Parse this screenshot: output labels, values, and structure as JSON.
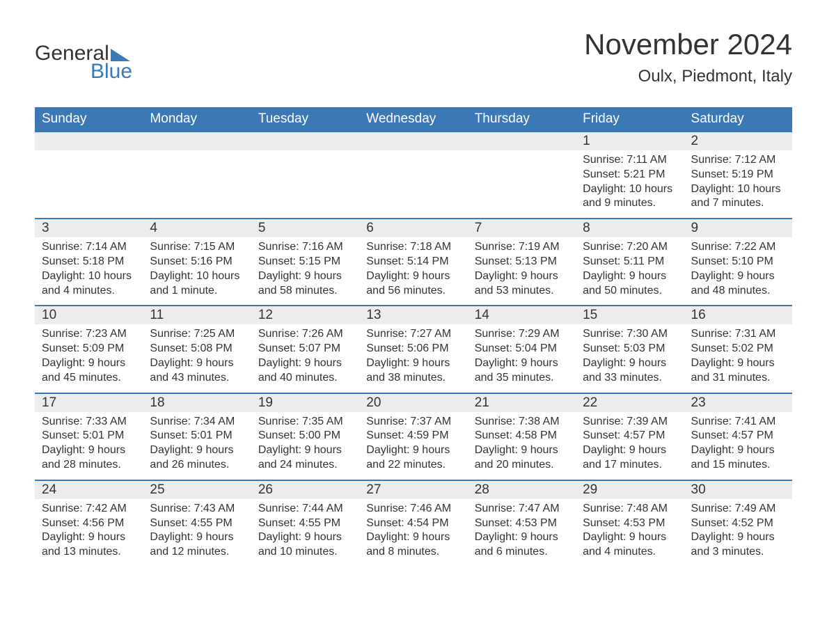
{
  "logo": {
    "word1": "General",
    "word2": "Blue"
  },
  "title": "November 2024",
  "location": "Oulx, Piedmont, Italy",
  "colors": {
    "header_bg": "#3b78b5",
    "header_text": "#ffffff",
    "band_bg": "#ececec",
    "week_border": "#3b78b5",
    "text": "#333333",
    "page_bg": "#ffffff"
  },
  "typography": {
    "title_fontsize": 42,
    "location_fontsize": 24,
    "weekday_fontsize": 19,
    "daynum_fontsize": 19,
    "body_fontsize": 16,
    "logo_fontsize": 30
  },
  "layout": {
    "columns": 7,
    "rows": 5,
    "cell_min_height": 120
  },
  "weekdays": [
    "Sunday",
    "Monday",
    "Tuesday",
    "Wednesday",
    "Thursday",
    "Friday",
    "Saturday"
  ],
  "weeks": [
    [
      {
        "empty": true
      },
      {
        "empty": true
      },
      {
        "empty": true
      },
      {
        "empty": true
      },
      {
        "empty": true
      },
      {
        "day": "1",
        "sunrise": "Sunrise: 7:11 AM",
        "sunset": "Sunset: 5:21 PM",
        "daylight": "Daylight: 10 hours and 9 minutes."
      },
      {
        "day": "2",
        "sunrise": "Sunrise: 7:12 AM",
        "sunset": "Sunset: 5:19 PM",
        "daylight": "Daylight: 10 hours and 7 minutes."
      }
    ],
    [
      {
        "day": "3",
        "sunrise": "Sunrise: 7:14 AM",
        "sunset": "Sunset: 5:18 PM",
        "daylight": "Daylight: 10 hours and 4 minutes."
      },
      {
        "day": "4",
        "sunrise": "Sunrise: 7:15 AM",
        "sunset": "Sunset: 5:16 PM",
        "daylight": "Daylight: 10 hours and 1 minute."
      },
      {
        "day": "5",
        "sunrise": "Sunrise: 7:16 AM",
        "sunset": "Sunset: 5:15 PM",
        "daylight": "Daylight: 9 hours and 58 minutes."
      },
      {
        "day": "6",
        "sunrise": "Sunrise: 7:18 AM",
        "sunset": "Sunset: 5:14 PM",
        "daylight": "Daylight: 9 hours and 56 minutes."
      },
      {
        "day": "7",
        "sunrise": "Sunrise: 7:19 AM",
        "sunset": "Sunset: 5:13 PM",
        "daylight": "Daylight: 9 hours and 53 minutes."
      },
      {
        "day": "8",
        "sunrise": "Sunrise: 7:20 AM",
        "sunset": "Sunset: 5:11 PM",
        "daylight": "Daylight: 9 hours and 50 minutes."
      },
      {
        "day": "9",
        "sunrise": "Sunrise: 7:22 AM",
        "sunset": "Sunset: 5:10 PM",
        "daylight": "Daylight: 9 hours and 48 minutes."
      }
    ],
    [
      {
        "day": "10",
        "sunrise": "Sunrise: 7:23 AM",
        "sunset": "Sunset: 5:09 PM",
        "daylight": "Daylight: 9 hours and 45 minutes."
      },
      {
        "day": "11",
        "sunrise": "Sunrise: 7:25 AM",
        "sunset": "Sunset: 5:08 PM",
        "daylight": "Daylight: 9 hours and 43 minutes."
      },
      {
        "day": "12",
        "sunrise": "Sunrise: 7:26 AM",
        "sunset": "Sunset: 5:07 PM",
        "daylight": "Daylight: 9 hours and 40 minutes."
      },
      {
        "day": "13",
        "sunrise": "Sunrise: 7:27 AM",
        "sunset": "Sunset: 5:06 PM",
        "daylight": "Daylight: 9 hours and 38 minutes."
      },
      {
        "day": "14",
        "sunrise": "Sunrise: 7:29 AM",
        "sunset": "Sunset: 5:04 PM",
        "daylight": "Daylight: 9 hours and 35 minutes."
      },
      {
        "day": "15",
        "sunrise": "Sunrise: 7:30 AM",
        "sunset": "Sunset: 5:03 PM",
        "daylight": "Daylight: 9 hours and 33 minutes."
      },
      {
        "day": "16",
        "sunrise": "Sunrise: 7:31 AM",
        "sunset": "Sunset: 5:02 PM",
        "daylight": "Daylight: 9 hours and 31 minutes."
      }
    ],
    [
      {
        "day": "17",
        "sunrise": "Sunrise: 7:33 AM",
        "sunset": "Sunset: 5:01 PM",
        "daylight": "Daylight: 9 hours and 28 minutes."
      },
      {
        "day": "18",
        "sunrise": "Sunrise: 7:34 AM",
        "sunset": "Sunset: 5:01 PM",
        "daylight": "Daylight: 9 hours and 26 minutes."
      },
      {
        "day": "19",
        "sunrise": "Sunrise: 7:35 AM",
        "sunset": "Sunset: 5:00 PM",
        "daylight": "Daylight: 9 hours and 24 minutes."
      },
      {
        "day": "20",
        "sunrise": "Sunrise: 7:37 AM",
        "sunset": "Sunset: 4:59 PM",
        "daylight": "Daylight: 9 hours and 22 minutes."
      },
      {
        "day": "21",
        "sunrise": "Sunrise: 7:38 AM",
        "sunset": "Sunset: 4:58 PM",
        "daylight": "Daylight: 9 hours and 20 minutes."
      },
      {
        "day": "22",
        "sunrise": "Sunrise: 7:39 AM",
        "sunset": "Sunset: 4:57 PM",
        "daylight": "Daylight: 9 hours and 17 minutes."
      },
      {
        "day": "23",
        "sunrise": "Sunrise: 7:41 AM",
        "sunset": "Sunset: 4:57 PM",
        "daylight": "Daylight: 9 hours and 15 minutes."
      }
    ],
    [
      {
        "day": "24",
        "sunrise": "Sunrise: 7:42 AM",
        "sunset": "Sunset: 4:56 PM",
        "daylight": "Daylight: 9 hours and 13 minutes."
      },
      {
        "day": "25",
        "sunrise": "Sunrise: 7:43 AM",
        "sunset": "Sunset: 4:55 PM",
        "daylight": "Daylight: 9 hours and 12 minutes."
      },
      {
        "day": "26",
        "sunrise": "Sunrise: 7:44 AM",
        "sunset": "Sunset: 4:55 PM",
        "daylight": "Daylight: 9 hours and 10 minutes."
      },
      {
        "day": "27",
        "sunrise": "Sunrise: 7:46 AM",
        "sunset": "Sunset: 4:54 PM",
        "daylight": "Daylight: 9 hours and 8 minutes."
      },
      {
        "day": "28",
        "sunrise": "Sunrise: 7:47 AM",
        "sunset": "Sunset: 4:53 PM",
        "daylight": "Daylight: 9 hours and 6 minutes."
      },
      {
        "day": "29",
        "sunrise": "Sunrise: 7:48 AM",
        "sunset": "Sunset: 4:53 PM",
        "daylight": "Daylight: 9 hours and 4 minutes."
      },
      {
        "day": "30",
        "sunrise": "Sunrise: 7:49 AM",
        "sunset": "Sunset: 4:52 PM",
        "daylight": "Daylight: 9 hours and 3 minutes."
      }
    ]
  ]
}
